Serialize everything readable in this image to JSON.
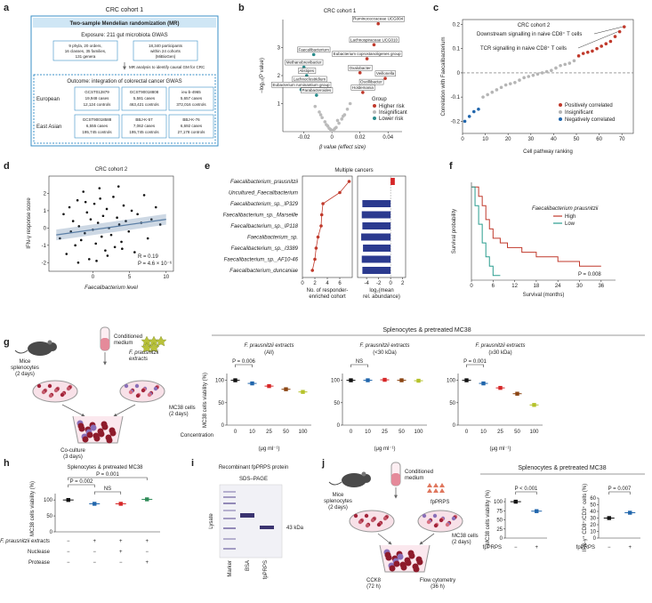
{
  "a": {
    "label": "a",
    "title": "CRC cohort 1",
    "header": "Two-sample Mendelian randomization (MR)",
    "exposure": "Exposure: 211 gut microbiota GWAS",
    "exposure_boxes": [
      [
        "9 phyla, 20 orders,",
        "16 classes, 35 families,",
        "131 genera"
      ],
      [
        "18,340 participants",
        "within 24 cohorts",
        "(MiBioGen)"
      ]
    ],
    "step": "MR analysis to identify causal GM for CRC",
    "outcome": "Outcome: integration of colorectal cancer GWAS",
    "cohorts": [
      {
        "region": "European",
        "studies": [
          [
            "GCST012879",
            "19,948 cases",
            "12,124 controls"
          ],
          [
            "GCST90018808",
            "5,581 cases",
            "463,421 controls"
          ],
          [
            "ieu-b-4965",
            "5,657 cases",
            "372,016 controls"
          ]
        ]
      },
      {
        "region": "East Asian",
        "studies": [
          [
            "GCST90018588",
            "6,555 cases",
            "195,745 controls"
          ],
          [
            "BBJ-K-57",
            "7,062 cases",
            "195,745 controls"
          ],
          [
            "BBJ-K-76",
            "6,692 cases",
            "27,178 controls"
          ]
        ]
      }
    ]
  },
  "b": {
    "label": "b",
    "type": "scatter",
    "title": "CRC cohort 1",
    "xlabel": "β value (effect size)",
    "ylabel": "−log₁₀(P value)",
    "xlim": [
      -0.035,
      0.05
    ],
    "ylim": [
      0,
      4
    ],
    "xticks": [
      -0.02,
      0,
      0.02,
      0.04
    ],
    "yticks": [
      1,
      2,
      3
    ],
    "legend_title": "Group",
    "series": [
      {
        "name": "Higher risk",
        "color": "#c0392b",
        "x": [
          0.033,
          0.03,
          0.025,
          0.02,
          0.028,
          0.022,
          0.038
        ],
        "values": [
          3.85,
          3.1,
          2.6,
          2.1,
          1.6,
          1.4,
          1.9
        ],
        "labels": [
          "Ruminococcaceae UCG004",
          "Lachnospiraceae UCG010",
          "Eubacterium coprostanoligenes group",
          "Oxalobacter",
          "Oscillibacter",
          "Holdemania",
          "Veillonella"
        ]
      },
      {
        "name": "Insignificant",
        "color": "#bbbbbb",
        "x": [
          -0.012,
          -0.009,
          -0.007,
          -0.005,
          -0.003,
          -0.001,
          0,
          0.001,
          0.003,
          0.005,
          0.007,
          0.009,
          0.011,
          0.013,
          -0.004,
          0.004,
          -0.008,
          0.008,
          0.002,
          -0.002
        ],
        "values": [
          0.9,
          0.7,
          0.5,
          0.35,
          0.2,
          0.08,
          0.03,
          0.05,
          0.15,
          0.3,
          0.45,
          0.6,
          0.8,
          1.0,
          0.25,
          0.4,
          0.6,
          0.55,
          0.1,
          0.12
        ]
      },
      {
        "name": "Lower risk",
        "color": "#2a8c8c",
        "x": [
          -0.013,
          -0.02,
          -0.018,
          -0.016,
          -0.022,
          -0.011
        ],
        "values": [
          2.75,
          2.3,
          2.0,
          1.7,
          1.5,
          1.3
        ],
        "labels": [
          "Faecalibacterium",
          "Methanobrevibacter",
          "Alistipes",
          "Lachnoclostridium",
          "Eubacterium ruminantium group",
          "Parabacteroides"
        ]
      }
    ]
  },
  "c": {
    "label": "c",
    "type": "scatter",
    "title": "CRC cohort 2",
    "xlabel": "Cell pathway ranking",
    "ylabel": "Correlation with Faecalibacterium",
    "xlim": [
      0,
      75
    ],
    "ylim": [
      -0.25,
      0.22
    ],
    "xticks": [
      0,
      10,
      20,
      30,
      40,
      50,
      60,
      70
    ],
    "yticks": [
      -0.2,
      -0.1,
      0,
      0.1,
      0.2
    ],
    "reference_line": 0,
    "annotations": [
      "Downstream signalling in naive CD8⁺ T cells",
      "TCR signalling in naive CD8⁺ T cells"
    ],
    "series": [
      {
        "name": "Positively correlated",
        "color": "#c0392b",
        "x": [
          51,
          53,
          55,
          57,
          59,
          61,
          63,
          65,
          67,
          69,
          71
        ],
        "values": [
          0.07,
          0.08,
          0.085,
          0.09,
          0.1,
          0.11,
          0.12,
          0.13,
          0.15,
          0.17,
          0.19
        ]
      },
      {
        "name": "Insignificant",
        "color": "#b5b5b5",
        "x": [
          9,
          11,
          13,
          15,
          17,
          19,
          21,
          23,
          25,
          27,
          29,
          31,
          33,
          35,
          37,
          39,
          41,
          43,
          45,
          47,
          49
        ],
        "values": [
          -0.1,
          -0.09,
          -0.08,
          -0.07,
          -0.06,
          -0.05,
          -0.045,
          -0.04,
          -0.03,
          -0.02,
          -0.015,
          -0.01,
          -0.005,
          0,
          0.005,
          0.01,
          0.02,
          0.03,
          0.035,
          0.04,
          0.05
        ]
      },
      {
        "name": "Negatively correlated",
        "color": "#2166ac",
        "x": [
          1,
          3,
          5,
          7
        ],
        "values": [
          -0.2,
          -0.18,
          -0.16,
          -0.15
        ]
      }
    ]
  },
  "d": {
    "label": "d",
    "type": "scatter",
    "title": "CRC cohort 2",
    "xlabel": "Faecalibacterium level",
    "ylabel": "IFN-γ response score",
    "xlim": [
      -6,
      11
    ],
    "ylim": [
      -2.5,
      3
    ],
    "xticks": [
      0,
      5,
      10
    ],
    "yticks": [
      -2,
      -1,
      0,
      1,
      2
    ],
    "color": "#111111",
    "fit_color": "#5b7fa6",
    "x": [
      -4.5,
      -4,
      -3.6,
      -3.2,
      -3,
      -2.7,
      -2.4,
      -2.1,
      -1.9,
      -1.6,
      -1.3,
      -1.1,
      -0.8,
      -0.5,
      -0.3,
      0,
      0.2,
      0.4,
      0.7,
      0.9,
      1.2,
      1.4,
      1.7,
      1.9,
      2.2,
      2.5,
      2.8,
      3,
      3.3,
      3.6,
      3.9,
      4.2,
      4.5,
      4.9,
      5.3,
      5.7,
      6.1,
      6.6,
      7,
      7.5,
      8,
      8.6,
      9.2,
      -2,
      0.5,
      1,
      2,
      3.5,
      -1,
      4
    ],
    "values": [
      -0.6,
      0.8,
      -1.5,
      1.2,
      -0.2,
      0.4,
      -1.0,
      1.6,
      0.1,
      -0.7,
      2.1,
      -0.3,
      0.9,
      -1.8,
      0.5,
      -0.1,
      1.4,
      -0.9,
      0.3,
      2.3,
      -0.5,
      0.7,
      -1.3,
      1.1,
      0,
      -0.4,
      1.8,
      -1.1,
      0.6,
      0.2,
      -0.8,
      1.3,
      0.4,
      -0.2,
      1.0,
      -1.4,
      0.8,
      0.3,
      1.9,
      -0.6,
      0.5,
      1.2,
      0.2,
      -2.0,
      -1.9,
      1.7,
      -1.6,
      2.4,
      1.5,
      -1.2
    ],
    "fit": {
      "x": [
        -5,
        10
      ],
      "values": [
        -0.4,
        0.5
      ]
    },
    "stats": [
      "R = 0.19",
      "P = 4.6 × 10⁻⁶"
    ]
  },
  "e": {
    "label": "e",
    "title": "Multiple cancers",
    "categories": [
      "Faecalibacterium_prausnitzii",
      "Uncultured_Faecalibacterium",
      "Faecalibacterium_sp._IP329",
      "Faecalibacterium_sp._Marseille",
      "Faecalibacterium_sp._IP118",
      "Faecalibacterium_sp.",
      "Faecalibacterium_sp._I3389",
      "Faecalibacterium_sp._AF10-46",
      "Faecalibacterium_duncaniae"
    ],
    "category_colors": [
      "#d62728",
      "#222222",
      "#222222",
      "#222222",
      "#222222",
      "#222222",
      "#222222",
      "#222222",
      "#222222"
    ],
    "left": {
      "xlabel": [
        "No. of responder-",
        "enriched cohort"
      ],
      "xlim": [
        0,
        8
      ],
      "xticks": [
        0,
        2,
        4,
        6
      ],
      "color": "#c0392b",
      "values": [
        7.5,
        6,
        3.3,
        3.1,
        3,
        2.5,
        2.2,
        2,
        1.6
      ]
    },
    "right": {
      "xlabel": [
        "log₂(mean",
        "rel. abundance)"
      ],
      "xlim": [
        -5.5,
        2.5
      ],
      "xticks": [
        -4,
        -2,
        0,
        2
      ],
      "colors": [
        "#d62728",
        "#2b3a8f",
        "#2b3a8f",
        "#2b3a8f",
        "#2b3a8f",
        "#2b3a8f",
        "#2b3a8f",
        "#2b3a8f",
        "#2b3a8f"
      ],
      "values": [
        0.7,
        null,
        -4.7,
        -4.8,
        -4.7,
        -4.9,
        -4.6,
        -4.8,
        -4.7
      ]
    }
  },
  "f": {
    "label": "f",
    "type": "line",
    "xlabel": "Survival (months)",
    "ylabel": "Survival probability",
    "xlim": [
      0,
      40
    ],
    "ylim": [
      0,
      1.05
    ],
    "xticks": [
      0,
      6,
      12,
      18,
      24,
      30,
      36
    ],
    "legend_title": "Faecalibacterium prausnitzii",
    "stat": "P = 0.008",
    "series": [
      {
        "name": "High",
        "color": "#c0392b",
        "x": [
          0,
          2,
          3,
          4,
          5,
          6,
          8,
          10,
          14,
          18,
          24,
          30,
          36
        ],
        "values": [
          1,
          0.9,
          0.8,
          0.65,
          0.55,
          0.45,
          0.4,
          0.35,
          0.3,
          0.25,
          0.2,
          0.15,
          0.15
        ]
      },
      {
        "name": "Low",
        "color": "#2a9d8f",
        "x": [
          0,
          1,
          2,
          3,
          4,
          5,
          6,
          8
        ],
        "values": [
          1,
          0.8,
          0.6,
          0.4,
          0.25,
          0.15,
          0.05,
          0.05
        ]
      }
    ]
  },
  "g": {
    "label": "g",
    "header": "Splenocytes & pretreated MC38",
    "mice": [
      "Mice",
      "splenocytes",
      "(2 days)"
    ],
    "medium": [
      "Conditioned",
      "medium"
    ],
    "extracts": [
      "F. prausnitzii",
      "extracts"
    ],
    "mc38": [
      "MC38 cells",
      "(2 days)"
    ],
    "coculture": [
      "Co-culture",
      "(3 days)"
    ],
    "ylabel": "MC38 cells viability (%)",
    "xlabel": "Concentration",
    "unit": "(μg ml⁻¹)",
    "categories": [
      "0",
      "10",
      "25",
      "50",
      "100"
    ],
    "colors": [
      "#111111",
      "#2166ac",
      "#d62728",
      "#8b4513",
      "#b5c22a"
    ],
    "subtitle_color": "#d62728",
    "plots": [
      {
        "title": "F. prausnitzii extracts",
        "subtitle": "(All)",
        "ylim": [
          0,
          115
        ],
        "yticks": [
          0,
          50,
          100
        ],
        "values": [
          100,
          93,
          87,
          80,
          74
        ],
        "stat": "P = 0.006"
      },
      {
        "title": "F. prausnitzii extracts",
        "subtitle": "(<30 kDa)",
        "ylim": [
          0,
          115
        ],
        "yticks": [
          0,
          50,
          100
        ],
        "values": [
          100,
          100,
          101,
          100,
          99
        ],
        "stat": "NS"
      },
      {
        "title": "F. prausnitzii extracts",
        "subtitle": "(≥30 kDa)",
        "ylim": [
          0,
          115
        ],
        "yticks": [
          0,
          50,
          100
        ],
        "values": [
          100,
          93,
          83,
          70,
          45
        ],
        "stat": "P = 0.001"
      }
    ]
  },
  "h": {
    "label": "h",
    "title": "Splenocytes & pretreated MC38",
    "ylabel": "MC38 cells viability (%)",
    "ylim": [
      0,
      120
    ],
    "yticks": [
      0,
      50,
      100
    ],
    "values": [
      100,
      88,
      88,
      102
    ],
    "colors": [
      "#111111",
      "#2166ac",
      "#d62728",
      "#2e8b57"
    ],
    "stats": [
      "P = 0.002",
      "NS",
      "P = 0.001"
    ],
    "rows": [
      {
        "label": "F. prausnitzii extracts",
        "signs": [
          "−",
          "+",
          "+",
          "+"
        ]
      },
      {
        "label": "Nuclease",
        "signs": [
          "−",
          "−",
          "+",
          "−"
        ]
      },
      {
        "label": "Protease",
        "signs": [
          "−",
          "−",
          "−",
          "+"
        ]
      }
    ]
  },
  "i": {
    "label": "i",
    "title": "Recombinant fpPRPS protein",
    "subtitle": "SDS–PAGE",
    "side": "Lysate",
    "lanes": [
      "Marker",
      "BSA",
      "fpPRPS"
    ],
    "band": "43 kDa"
  },
  "j": {
    "label": "j",
    "mice": [
      "Mice",
      "splenocytes",
      "(2 days)"
    ],
    "medium": [
      "Conditioned",
      "medium"
    ],
    "protein": "fpPRPS",
    "mc38": [
      "MC38 cells",
      "(2 days)"
    ],
    "cck8": [
      "CCK8",
      "(72 h)"
    ],
    "flow": [
      "Flow cytometry",
      "(36 h)"
    ],
    "header": "Splenocytes & pretreated MC38",
    "xlabel": "fpPRPS",
    "signs": [
      "−",
      "+"
    ],
    "colors": [
      "#111111",
      "#2166ac"
    ],
    "plots": [
      {
        "ylabel": "MC38 cells viability (%)",
        "ylim": [
          0,
          110
        ],
        "yticks": [
          0,
          25,
          50,
          75,
          100
        ],
        "values": [
          100,
          74
        ],
        "stat": "P < 0.001"
      },
      {
        "ylabel": "IFN-γ⁺ CD8⁺/CD3⁺ cells (%)",
        "ylim": [
          0,
          60
        ],
        "yticks": [
          0,
          10,
          20,
          30,
          40,
          50,
          60
        ],
        "values": [
          30,
          38
        ],
        "stat": "P = 0.007"
      }
    ]
  }
}
